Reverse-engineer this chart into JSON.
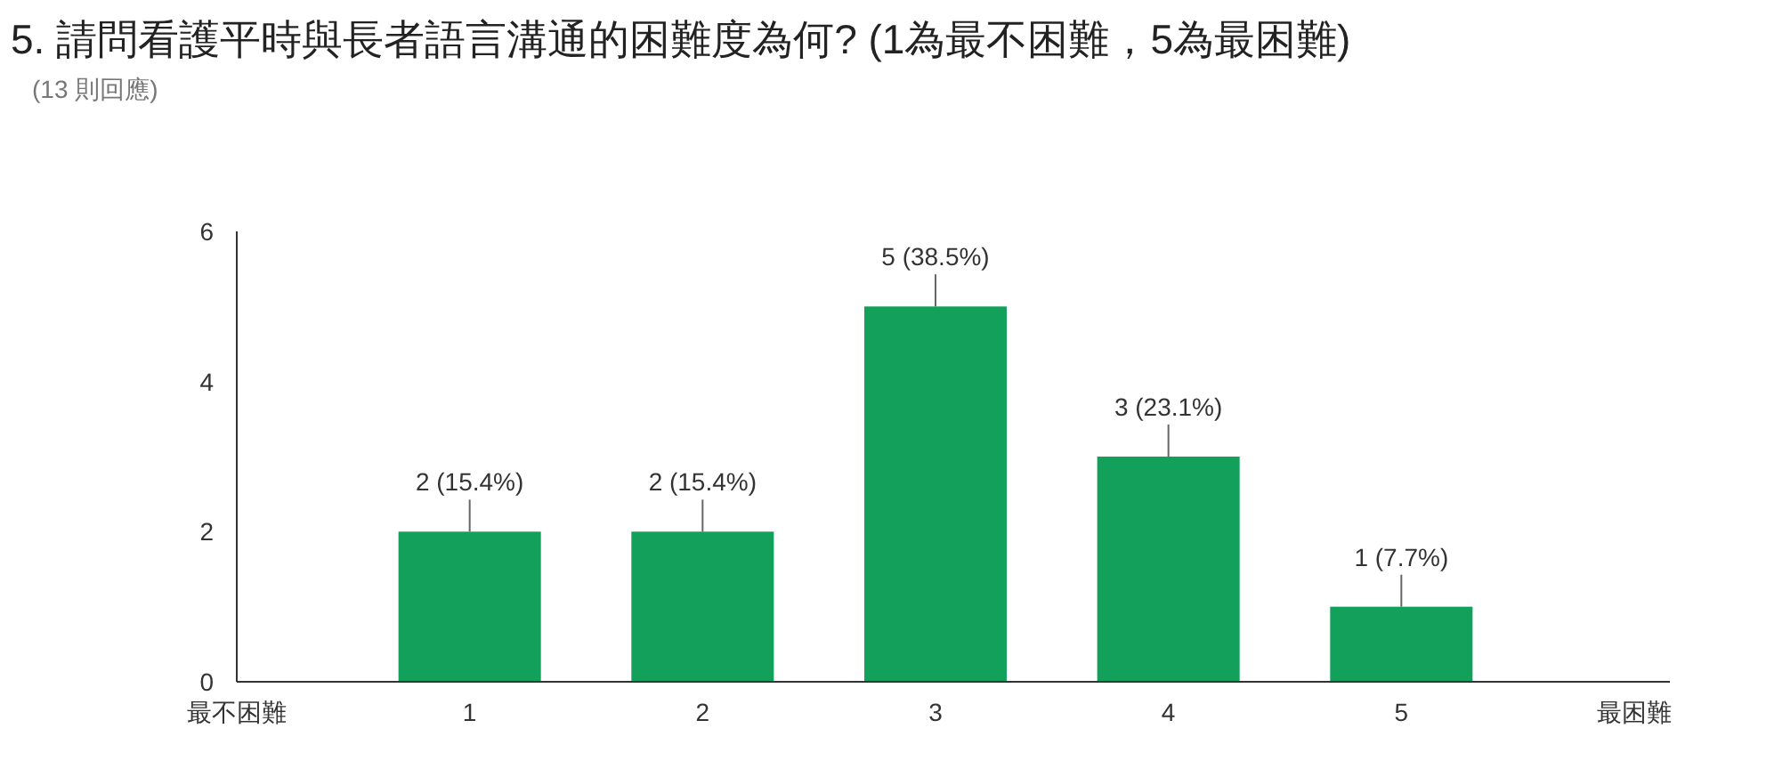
{
  "chart_data": {
    "type": "bar",
    "title": "5. 請問看護平時與長者語言溝通的困難度為何? (1為最不困難，5為最困難)",
    "subtitle": "(13 則回應)",
    "categories": [
      "最不困難",
      "1",
      "2",
      "3",
      "4",
      "5",
      "最困難"
    ],
    "values": [
      null,
      2,
      2,
      5,
      3,
      1,
      null
    ],
    "value_labels": [
      null,
      "2 (15.4%)",
      "2 (15.4%)",
      "5 (38.5%)",
      "3 (23.1%)",
      "1 (7.7%)",
      null
    ],
    "color": "#12a05a",
    "ylim": [
      0,
      6
    ],
    "yticks": [
      0,
      2,
      4,
      6
    ],
    "grid": false
  }
}
